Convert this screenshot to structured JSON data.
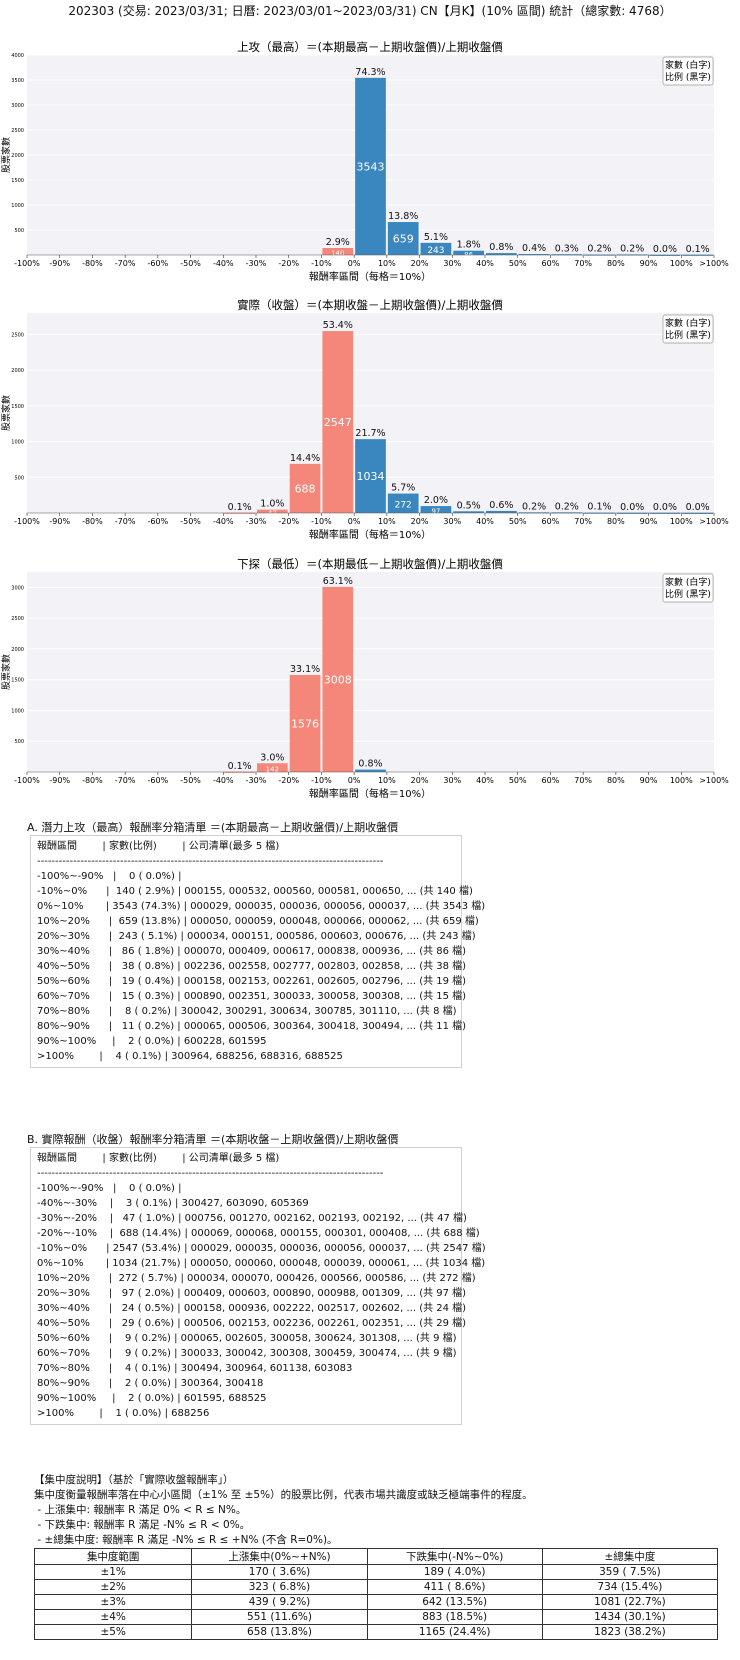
{
  "page_title": "202303 (交易: 2023/03/31; 日曆: 2023/03/01~2023/03/31) CN【月K】(10% 區間) 統計（總家數: 4768）",
  "chart_data": [
    {
      "type": "bar",
      "title": "上攻（最高）＝(本期最高－上期收盤價)/上期收盤價",
      "xlabel": "報酬率區間（每格＝10%）",
      "ylabel": "股票家數",
      "legend": [
        "家數 (白字)",
        "比例 (黑字)"
      ],
      "legend_position": "top-right",
      "x_ticks": [
        "-100%",
        "-90%",
        "-80%",
        "-70%",
        "-60%",
        "-50%",
        "-40%",
        "-30%",
        "-20%",
        "-10%",
        "0%",
        "10%",
        "20%",
        "30%",
        "40%",
        "50%",
        "60%",
        "70%",
        "80%",
        "90%",
        "100%",
        ">100%"
      ],
      "ylim": [
        0,
        4000
      ],
      "y_ticks": [
        500,
        1000,
        1500,
        2000,
        2500,
        3000,
        3500,
        4000
      ],
      "categories": [
        "-100%~-90%",
        "-90%~-80%",
        "-80%~-70%",
        "-70%~-60%",
        "-60%~-50%",
        "-50%~-40%",
        "-40%~-30%",
        "-30%~-20%",
        "-20%~-10%",
        "-10%~0%",
        "0%~10%",
        "10%~20%",
        "20%~30%",
        "30%~40%",
        "40%~50%",
        "50%~60%",
        "60%~70%",
        "70%~80%",
        "80%~90%",
        "90%~100%",
        ">100%"
      ],
      "values": [
        0,
        0,
        0,
        0,
        0,
        0,
        0,
        0,
        0,
        140,
        3543,
        659,
        243,
        86,
        38,
        19,
        15,
        8,
        11,
        2,
        4
      ],
      "pct_labels": [
        "",
        "",
        "",
        "",
        "",
        "",
        "",
        "",
        "",
        "2.9%",
        "74.3%",
        "13.8%",
        "5.1%",
        "1.8%",
        "0.8%",
        "0.4%",
        "0.3%",
        "0.2%",
        "0.2%",
        "0.0%",
        "0.1%"
      ],
      "count_labels": [
        "",
        "",
        "",
        "",
        "",
        "",
        "",
        "",
        "",
        "140",
        "3543",
        "659",
        "243",
        "86",
        "",
        "",
        "",
        "",
        "",
        "",
        ""
      ]
    },
    {
      "type": "bar",
      "title": "實際（收盤）＝(本期收盤－上期收盤價)/上期收盤價",
      "xlabel": "報酬率區間（每格＝10%）",
      "ylabel": "股票家數",
      "legend": [
        "家數 (白字)",
        "比例 (黑字)"
      ],
      "legend_position": "top-right",
      "x_ticks": [
        "-100%",
        "-90%",
        "-80%",
        "-70%",
        "-60%",
        "-50%",
        "-40%",
        "-30%",
        "-20%",
        "-10%",
        "0%",
        "10%",
        "20%",
        "30%",
        "40%",
        "50%",
        "60%",
        "70%",
        "80%",
        "90%",
        "100%",
        ">100%"
      ],
      "ylim": [
        0,
        2800
      ],
      "y_ticks": [
        500,
        1000,
        1500,
        2000,
        2500
      ],
      "categories": [
        "-100%~-90%",
        "-90%~-80%",
        "-80%~-70%",
        "-70%~-60%",
        "-60%~-50%",
        "-50%~-40%",
        "-40%~-30%",
        "-30%~-20%",
        "-20%~-10%",
        "-10%~0%",
        "0%~10%",
        "10%~20%",
        "20%~30%",
        "30%~40%",
        "40%~50%",
        "50%~60%",
        "60%~70%",
        "70%~80%",
        "80%~90%",
        "90%~100%",
        ">100%"
      ],
      "values": [
        0,
        0,
        0,
        0,
        0,
        0,
        3,
        47,
        688,
        2547,
        1034,
        272,
        97,
        24,
        29,
        9,
        9,
        4,
        2,
        2,
        1
      ],
      "pct_labels": [
        "",
        "",
        "",
        "",
        "",
        "",
        "0.1%",
        "1.0%",
        "14.4%",
        "53.4%",
        "21.7%",
        "5.7%",
        "2.0%",
        "0.5%",
        "0.6%",
        "0.2%",
        "0.2%",
        "0.1%",
        "0.0%",
        "0.0%",
        "0.0%"
      ],
      "count_labels": [
        "",
        "",
        "",
        "",
        "",
        "",
        "",
        "47",
        "688",
        "2547",
        "1034",
        "272",
        "97",
        "",
        "",
        "",
        "",
        "",
        "",
        "",
        ""
      ]
    },
    {
      "type": "bar",
      "title": "下探（最低）＝(本期最低－上期收盤價)/上期收盤價",
      "xlabel": "報酬率區間（每格＝10%）",
      "ylabel": "股票家數",
      "legend": [
        "家數 (白字)",
        "比例 (黑字)"
      ],
      "legend_position": "top-right",
      "x_ticks": [
        "-100%",
        "-90%",
        "-80%",
        "-70%",
        "-60%",
        "-50%",
        "-40%",
        "-30%",
        "-20%",
        "-10%",
        "0%",
        "10%",
        "20%",
        "30%",
        "40%",
        "50%",
        "60%",
        "70%",
        "80%",
        "90%",
        "100%",
        ">100%"
      ],
      "ylim": [
        0,
        3250
      ],
      "y_ticks": [
        500,
        1000,
        1500,
        2000,
        2500,
        3000
      ],
      "categories": [
        "-100%~-90%",
        "-90%~-80%",
        "-80%~-70%",
        "-70%~-60%",
        "-60%~-50%",
        "-50%~-40%",
        "-40%~-30%",
        "-30%~-20%",
        "-20%~-10%",
        "-10%~0%",
        "0%~10%",
        "10%~20%",
        "20%~30%",
        "30%~40%",
        "40%~50%",
        "50%~60%",
        "60%~70%",
        "70%~80%",
        "80%~90%",
        "90%~100%",
        ">100%"
      ],
      "values": [
        0,
        0,
        0,
        0,
        0,
        0,
        3,
        142,
        1576,
        3008,
        39,
        0,
        0,
        0,
        0,
        0,
        0,
        0,
        0,
        0,
        0
      ],
      "pct_labels": [
        "",
        "",
        "",
        "",
        "",
        "",
        "0.1%",
        "3.0%",
        "33.1%",
        "63.1%",
        "0.8%",
        "",
        "",
        "",
        "",
        "",
        "",
        "",
        "",
        "",
        ""
      ],
      "count_labels": [
        "",
        "",
        "",
        "",
        "",
        "",
        "",
        "142",
        "1576",
        "3008",
        "",
        "",
        "",
        "",
        "",
        "",
        "",
        "",
        "",
        "",
        ""
      ]
    }
  ],
  "colors": {
    "positive": "#3a87c0",
    "negative": "#f4877a",
    "grid_bg": "#f2f2f7"
  },
  "list_a": {
    "title": "A. 潛力上攻（最高）報酬率分箱清單 ＝(本期最高－上期收盤價)/上期收盤價",
    "lines": [
      "報酬區間        | 家數(比例)        | 公司清單(最多 5 檔)",
      "------------------------------------------------------------------------------------------------",
      "-100%~-90%   |    0 ( 0.0%) |",
      "-10%~0%      |  140 ( 2.9%) | 000155, 000532, 000560, 000581, 000650, ... (共 140 檔)",
      "0%~10%       | 3543 (74.3%) | 000029, 000035, 000036, 000056, 000037, ... (共 3543 檔)",
      "10%~20%      |  659 (13.8%) | 000050, 000059, 000048, 000066, 000062, ... (共 659 檔)",
      "20%~30%      |  243 ( 5.1%) | 000034, 000151, 000586, 000603, 000676, ... (共 243 檔)",
      "30%~40%      |   86 ( 1.8%) | 000070, 000409, 000617, 000838, 000936, ... (共 86 檔)",
      "40%~50%      |   38 ( 0.8%) | 002236, 002558, 002777, 002803, 002858, ... (共 38 檔)",
      "50%~60%      |   19 ( 0.4%) | 000158, 002153, 002261, 002605, 002796, ... (共 19 檔)",
      "60%~70%      |   15 ( 0.3%) | 000890, 002351, 300033, 300058, 300308, ... (共 15 檔)",
      "70%~80%      |    8 ( 0.2%) | 300042, 300291, 300634, 300785, 301110, ... (共 8 檔)",
      "80%~90%      |   11 ( 0.2%) | 000065, 000506, 300364, 300418, 300494, ... (共 11 檔)",
      "90%~100%     |    2 ( 0.0%) | 600228, 601595",
      ">100%        |    4 ( 0.1%) | 300964, 688256, 688316, 688525"
    ]
  },
  "list_b": {
    "title": "B. 實際報酬（收盤）報酬率分箱清單 ＝(本期收盤－上期收盤價)/上期收盤價",
    "lines": [
      "報酬區間        | 家數(比例)        | 公司清單(最多 5 檔)",
      "------------------------------------------------------------------------------------------------",
      "-100%~-90%   |    0 ( 0.0%) |",
      "-40%~-30%    |    3 ( 0.1%) | 300427, 603090, 605369",
      "-30%~-20%    |   47 ( 1.0%) | 000756, 001270, 002162, 002193, 002192, ... (共 47 檔)",
      "-20%~-10%    |  688 (14.4%) | 000069, 000068, 000155, 000301, 000408, ... (共 688 檔)",
      "-10%~0%      | 2547 (53.4%) | 000029, 000035, 000036, 000056, 000037, ... (共 2547 檔)",
      "0%~10%       | 1034 (21.7%) | 000050, 000060, 000048, 000039, 000061, ... (共 1034 檔)",
      "10%~20%      |  272 ( 5.7%) | 000034, 000070, 000426, 000566, 000586, ... (共 272 檔)",
      "20%~30%      |   97 ( 2.0%) | 000409, 000603, 000890, 000988, 001309, ... (共 97 檔)",
      "30%~40%      |   24 ( 0.5%) | 000158, 000936, 002222, 002517, 002602, ... (共 24 檔)",
      "40%~50%      |   29 ( 0.6%) | 000506, 002153, 002236, 002261, 002351, ... (共 29 檔)",
      "50%~60%      |    9 ( 0.2%) | 000065, 002605, 300058, 300624, 301308, ... (共 9 檔)",
      "60%~70%      |    9 ( 0.2%) | 300033, 300042, 300308, 300459, 300474, ... (共 9 檔)",
      "70%~80%      |    4 ( 0.1%) | 300494, 300964, 601138, 603083",
      "80%~90%      |    2 ( 0.0%) | 300364, 300418",
      "90%~100%     |    2 ( 0.0%) | 601595, 688525",
      ">100%        |    1 ( 0.0%) | 688256"
    ]
  },
  "concentration": {
    "lines": [
      "【集中度說明】（基於「實際收盤報酬率」）",
      "集中度衡量報酬率落在中心小區間（±1% 至 ±5%）的股票比例，代表市場共識度或缺乏極端事件的程度。",
      " - 上漲集中: 報酬率 R 滿足 0% < R ≤ N%。",
      " - 下跌集中: 報酬率 R 滿足 -N% ≤ R < 0%。",
      " - ±總集中度: 報酬率 R 滿足 -N% ≤ R ≤ +N% (不含 R=0%)。"
    ],
    "headers": [
      "集中度範圍",
      "上漲集中(0%~+N%)",
      "下跌集中(-N%~0%)",
      "±總集中度"
    ],
    "rows": [
      [
        "±1%",
        "170 ( 3.6%)",
        "189 ( 4.0%)",
        "359 ( 7.5%)"
      ],
      [
        "±2%",
        "323 ( 6.8%)",
        "411 ( 8.6%)",
        "734 (15.4%)"
      ],
      [
        "±3%",
        "439 ( 9.2%)",
        "642 (13.5%)",
        "1081 (22.7%)"
      ],
      [
        "±4%",
        "551 (11.6%)",
        "883 (18.5%)",
        "1434 (30.1%)"
      ],
      [
        "±5%",
        "658 (13.8%)",
        "1165 (24.4%)",
        "1823 (38.2%)"
      ]
    ]
  }
}
